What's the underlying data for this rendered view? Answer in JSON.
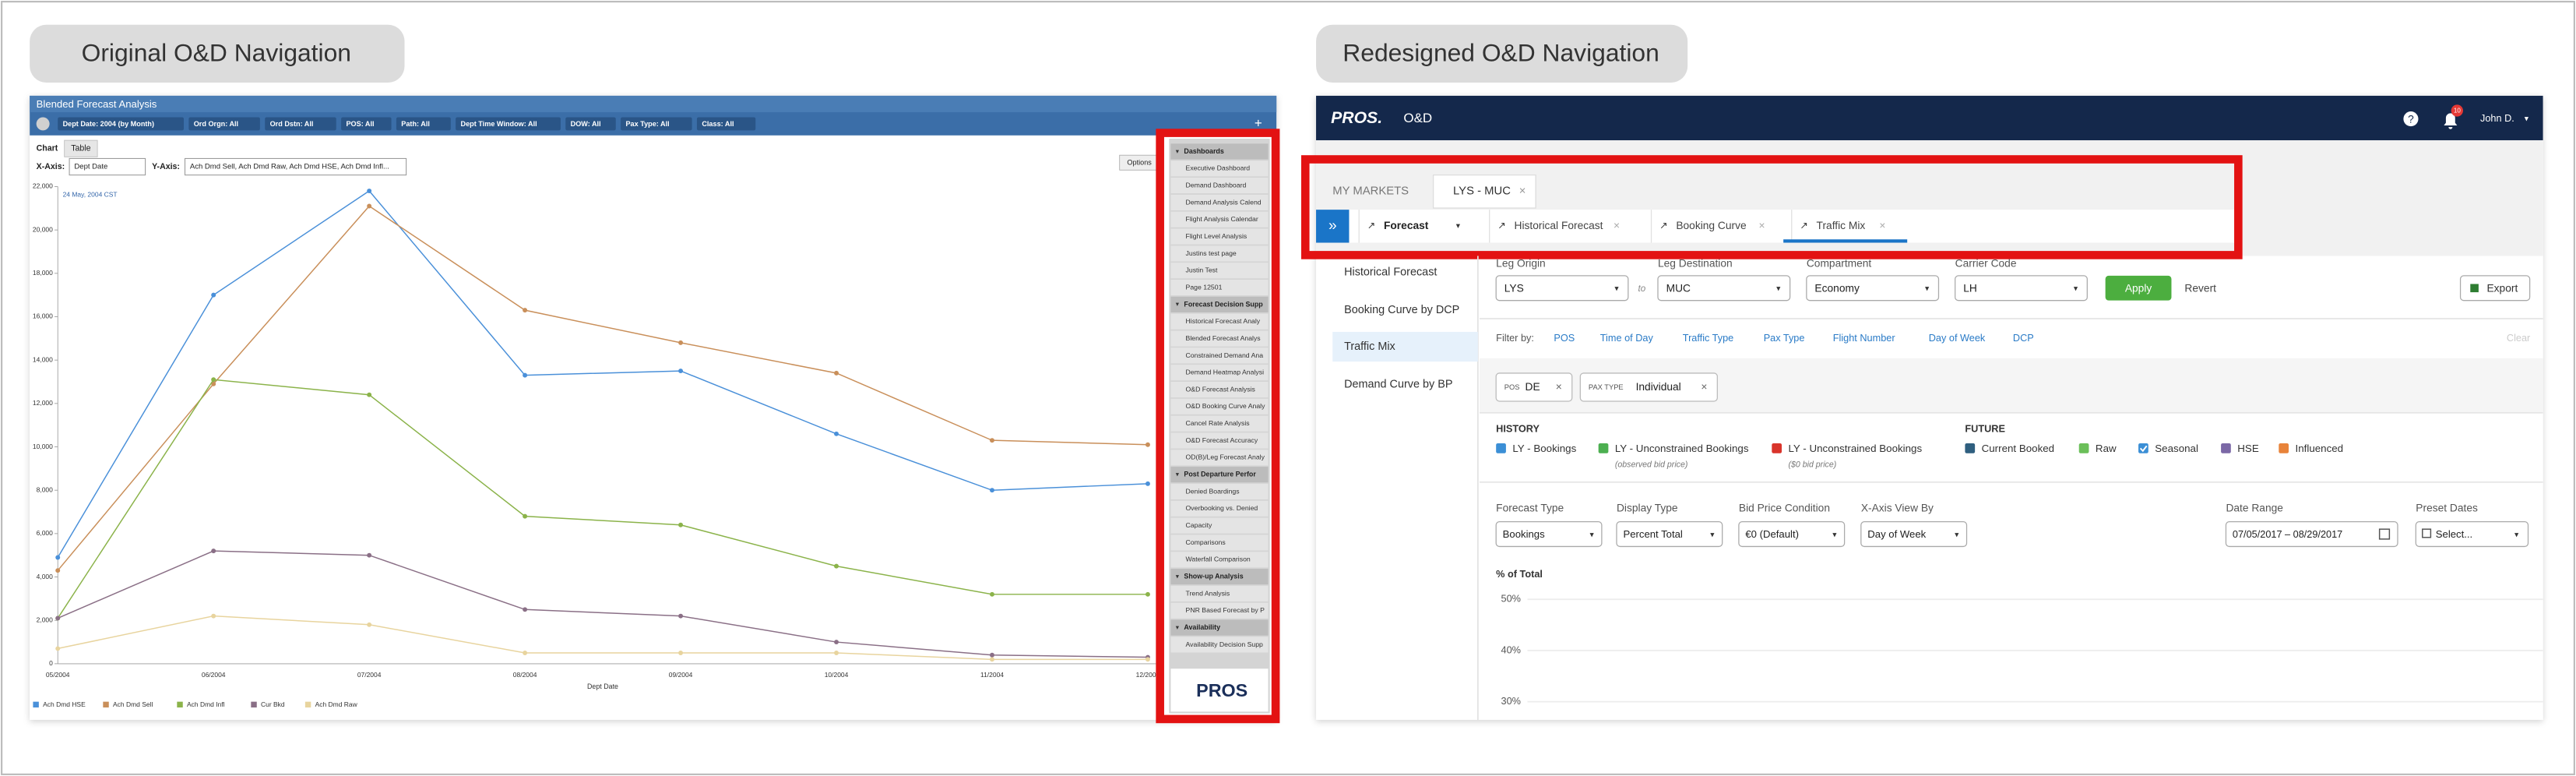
{
  "left": {
    "label": "Original O&D Navigation",
    "title": "Blended Forecast Analysis",
    "filters": [
      "Dept Date: 2004 (by Month)",
      "Ord Orgn: All",
      "Ord Dstn: All",
      "POS: All",
      "Path: All",
      "Dept Time Window: All",
      "DOW: All",
      "Pax Type: All",
      "Class: All"
    ],
    "tabs": [
      "Chart",
      "Table"
    ],
    "x_axis_label": "X-Axis:",
    "x_axis_value": "Dept Date",
    "y_axis_label": "Y-Axis:",
    "y_axis_value": "Ach Dmd Sell, Ach Dmd Raw, Ach Dmd HSE, Ach Dmd Infl...",
    "options": "Options",
    "chart_data": {
      "type": "line",
      "annotation": "24 May, 2004 CST",
      "x_label": "Dept Date",
      "categories": [
        "05/2004",
        "06/2004",
        "07/2004",
        "08/2004",
        "09/2004",
        "10/2004",
        "11/2004",
        "12/2004"
      ],
      "ylim": [
        0,
        22000
      ],
      "yticks": [
        0,
        {
          "value": 2000,
          "label": "2,000"
        },
        {
          "value": 4000,
          "label": "4,000"
        },
        {
          "value": 6000,
          "label": "6,000"
        },
        {
          "value": 8000,
          "label": "8,000"
        },
        {
          "value": 10000,
          "label": "10,000"
        },
        {
          "value": 12000,
          "label": "12,000"
        },
        {
          "value": 14000,
          "label": "14,000"
        },
        {
          "value": 16000,
          "label": "16,000"
        },
        {
          "value": 18000,
          "label": "18,000"
        },
        {
          "value": 20000,
          "label": "20,000"
        },
        {
          "value": 22000,
          "label": "22,000"
        }
      ],
      "series": [
        {
          "name": "Ach Dmd HSE",
          "color": "#4a90d9",
          "values": [
            4900,
            17000,
            21800,
            13300,
            13500,
            10600,
            8000,
            8300
          ]
        },
        {
          "name": "Ach Dmd Sell",
          "color": "#c98f5a",
          "values": [
            4300,
            12900,
            21100,
            16300,
            14800,
            13400,
            10300,
            10100
          ]
        },
        {
          "name": "Ach Dmd Infl",
          "color": "#8bb34a",
          "values": [
            2100,
            13100,
            12400,
            6800,
            6400,
            4500,
            3200,
            3200
          ]
        },
        {
          "name": "Cur Bkd",
          "color": "#8a6f86",
          "values": [
            2100,
            5200,
            5000,
            2500,
            2200,
            1000,
            400,
            300
          ]
        },
        {
          "name": "Ach Dmd Raw",
          "color": "#e8d49e",
          "values": [
            700,
            2200,
            1800,
            500,
            500,
            500,
            200,
            200
          ]
        }
      ]
    },
    "menu": [
      {
        "title": "Dashboards",
        "items": [
          "Executive Dashboard",
          "Demand Dashboard",
          "Demand Analysis Calend",
          "Flight Analysis Calendar",
          "Flight Level Analysis",
          "Justins test page",
          "Justin Test",
          "Page 12501"
        ]
      },
      {
        "title": "Forecast Decision Supp",
        "items": [
          "Historical Forecast Analy",
          "Blended Forecast Analys",
          "Constrained Demand Ana",
          "Demand Heatmap Analysi",
          "O&D Forecast Analysis",
          "O&D Booking Curve Analy",
          "Cancel Rate Analysis",
          "O&D Forecast Accuracy",
          "OD(B)/Leg Forecast Analy"
        ]
      },
      {
        "title": "Post Departure Perfor",
        "items": [
          "Denied Boardings",
          "Overbooking vs. Denied",
          "Capacity",
          "Comparisons",
          "Waterfall Comparison"
        ]
      },
      {
        "title": "Show-up Analysis",
        "items": [
          "Trend Analysis",
          "PNR Based Forecast by P"
        ]
      },
      {
        "title": "Availability",
        "items": [
          "Availability Decision Supp"
        ]
      }
    ],
    "logo": "PROS"
  },
  "right": {
    "label": "Redesigned O&D Navigation",
    "brand": "PROS.",
    "app": "O&D",
    "notifications": "10",
    "user": "John D.",
    "tabs": [
      "MY MARKETS",
      "LYS - MUC"
    ],
    "subtabs": [
      "Forecast",
      "Historical Forecast",
      "Booking Curve",
      "Traffic Mix"
    ],
    "sidebar": [
      "Historical Forecast",
      "Booking Curve by DCP",
      "Traffic Mix",
      "Demand Curve by BP"
    ],
    "fields": [
      {
        "label": "Leg Origin",
        "value": "LYS"
      },
      {
        "label": "Leg Destination",
        "value": "MUC"
      },
      {
        "label": "Compartment",
        "value": "Economy"
      },
      {
        "label": "Carrier Code",
        "value": "LH"
      }
    ],
    "to": "to",
    "apply": "Apply",
    "revert": "Revert",
    "export": "Export",
    "filter_label": "Filter by:",
    "filters": [
      "POS",
      "Time of Day",
      "Traffic Type",
      "Pax Type",
      "Flight Number",
      "Day of Week",
      "DCP"
    ],
    "clear": "Clear",
    "chips": [
      {
        "key": "POS",
        "value": "DE"
      },
      {
        "key": "PAX TYPE",
        "value": "Individual"
      }
    ],
    "history": {
      "title": "HISTORY",
      "items": [
        {
          "name": "LY - Bookings",
          "color": "#3b8fd6"
        },
        {
          "name": "LY - Unconstrained Bookings",
          "note": "(observed bid price)",
          "color": "#4caf50"
        },
        {
          "name": "LY - Unconstrained Bookings",
          "note": "($0 bid price)",
          "color": "#d9342b"
        }
      ]
    },
    "future": {
      "title": "FUTURE",
      "items": [
        {
          "name": "Current Booked",
          "color": "#2f5f7f"
        },
        {
          "name": "Raw",
          "color": "#6bbf59"
        },
        {
          "name": "Seasonal",
          "color": "#3b8fd6",
          "checked": true
        },
        {
          "name": "HSE",
          "color": "#7b68a6"
        },
        {
          "name": "Influenced",
          "color": "#e8833a"
        }
      ]
    },
    "options": [
      {
        "label": "Forecast Type",
        "value": "Bookings"
      },
      {
        "label": "Display Type",
        "value": "Percent Total"
      },
      {
        "label": "Bid Price Condition",
        "value": "€0 (Default)"
      },
      {
        "label": "X-Axis View By",
        "value": "Day of Week"
      }
    ],
    "date_range": {
      "label": "Date Range",
      "value": "07/05/2017 – 08/29/2017"
    },
    "preset": {
      "label": "Preset Dates",
      "value": "Select..."
    },
    "chart": {
      "title": "% of Total",
      "yticks": [
        {
          "value": 50,
          "label": "50%"
        },
        {
          "value": 40,
          "label": "40%"
        },
        {
          "value": 30,
          "label": "30%"
        }
      ]
    }
  }
}
